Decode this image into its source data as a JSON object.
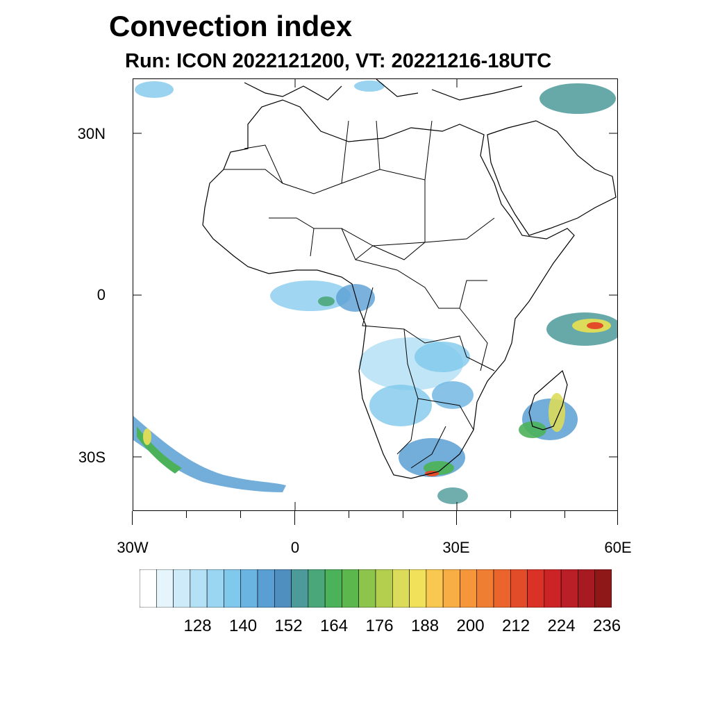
{
  "title": "Convection index",
  "subtitle": "Run: ICON 2022121200,  VT: 20221216-18UTC",
  "map": {
    "projection": "cylindrical equidistant",
    "lon_range": [
      -30,
      60
    ],
    "lat_range": [
      -40,
      40
    ],
    "y_ticks": [
      {
        "lat": 30,
        "label": "30N"
      },
      {
        "lat": 0,
        "label": "0"
      },
      {
        "lat": -30,
        "label": "30S"
      }
    ],
    "x_ticks": [
      {
        "lon": -30,
        "label": "30W"
      },
      {
        "lon": 0,
        "label": "0"
      },
      {
        "lon": 30,
        "label": "30E"
      },
      {
        "lon": 60,
        "label": "60E"
      }
    ]
  },
  "colorbar": {
    "colors": [
      "#ffffff",
      "#e6f5fc",
      "#cdebf8",
      "#b4e1f5",
      "#9ad6f2",
      "#80c8ec",
      "#6ab4e1",
      "#5a9fd4",
      "#4f8fc0",
      "#4c9a9a",
      "#4aa77a",
      "#4cb25a",
      "#5cb84c",
      "#8cc44c",
      "#b4cf4e",
      "#dcdc5a",
      "#f0e05a",
      "#f8c850",
      "#f8ae44",
      "#f6963a",
      "#f07e32",
      "#ea642c",
      "#e24c28",
      "#da3226",
      "#cc2426",
      "#ba1e26",
      "#a81a22",
      "#8e1818"
    ],
    "labels": [
      "128",
      "140",
      "152",
      "164",
      "176",
      "188",
      "200",
      "212",
      "224",
      "236"
    ]
  },
  "convection_regions": [
    "Gulf of Guinea / Gabon",
    "Central Africa (Congo, Angola, Zambia)",
    "South Africa",
    "Madagascar and southern Indian Ocean",
    "Western Indian Ocean near 5S",
    "South Atlantic frontal band",
    "Eastern Mediterranean / Middle East"
  ]
}
